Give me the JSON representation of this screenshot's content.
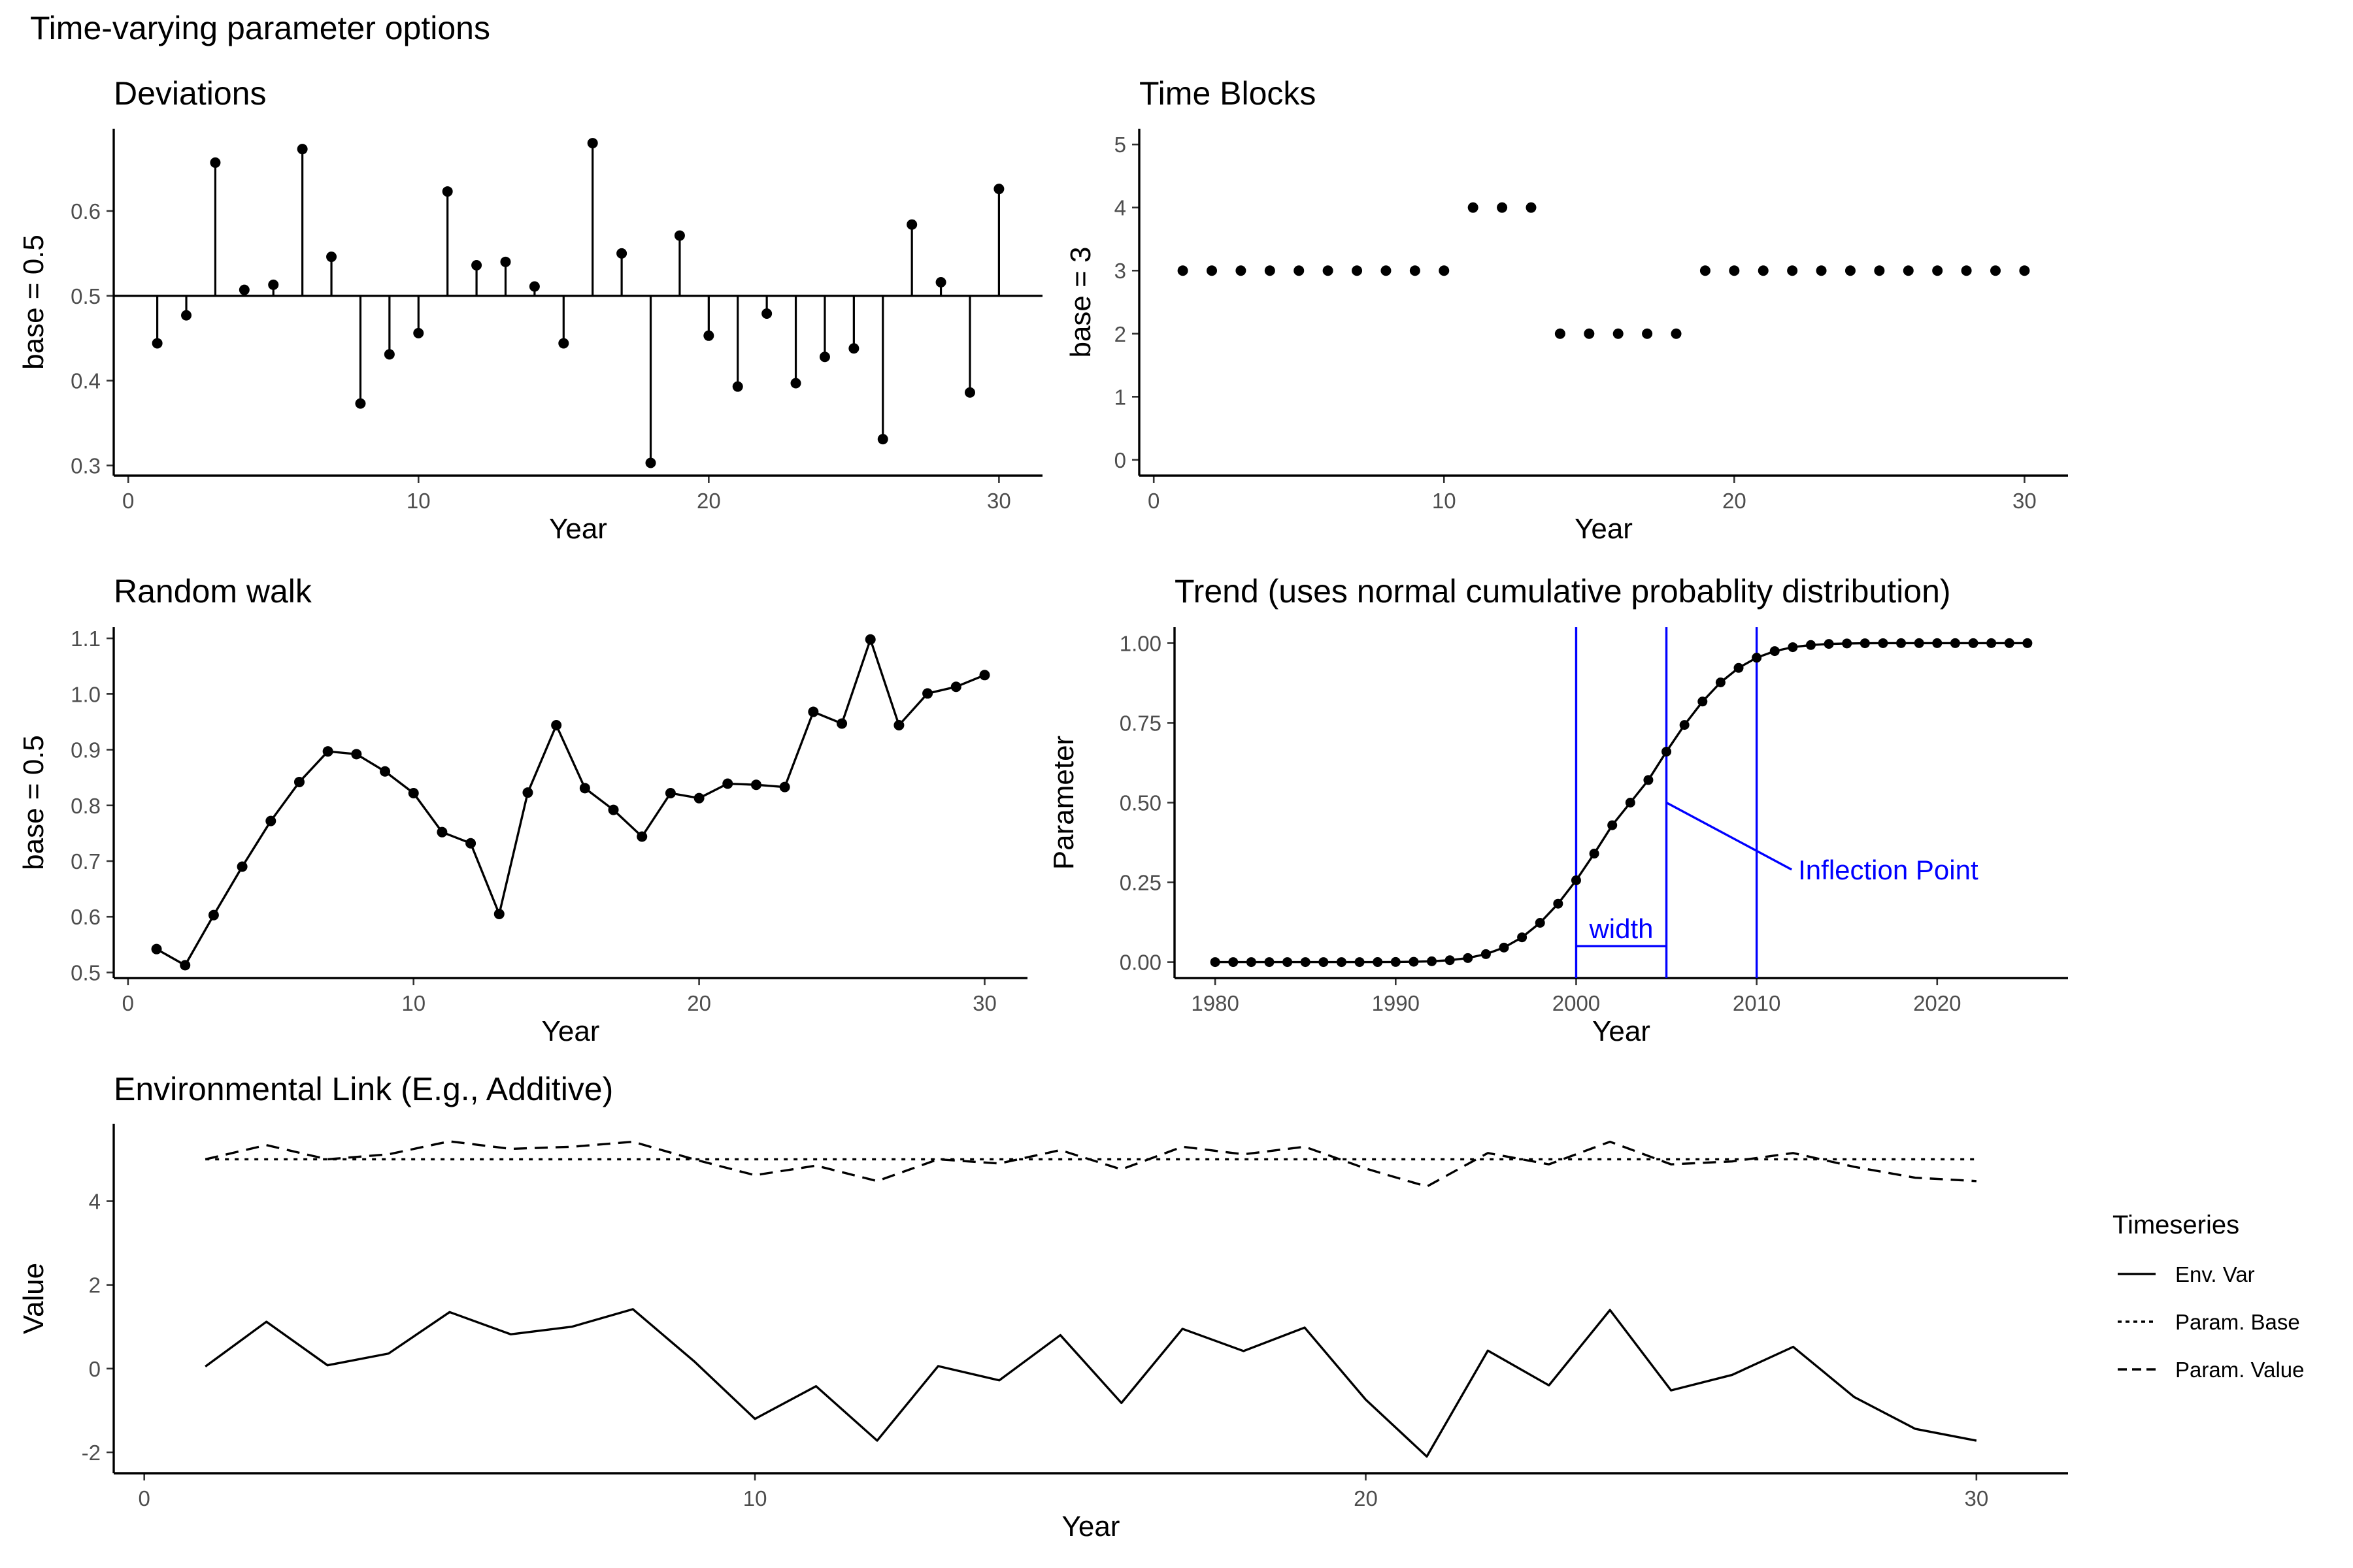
{
  "figure": {
    "title": "Time-varying parameter options",
    "legend_title": "Timeseries"
  },
  "chart_data": [
    {
      "id": "deviations",
      "type": "scatter",
      "style": "lollipop",
      "title": "Deviations",
      "xlabel": "Year",
      "ylabel": "base = 0.5",
      "baseline": 0.5,
      "xlim": [
        -0.5,
        31.5
      ],
      "ylim": [
        0.288,
        0.697
      ],
      "xticks": [
        0,
        10,
        20,
        30
      ],
      "yticks": [
        0.3,
        0.4,
        0.5,
        0.6
      ],
      "x": [
        1,
        2,
        3,
        4,
        5,
        6,
        7,
        8,
        9,
        10,
        11,
        12,
        13,
        14,
        15,
        16,
        17,
        18,
        19,
        20,
        21,
        22,
        23,
        24,
        25,
        26,
        27,
        28,
        29,
        30
      ],
      "y": [
        0.444,
        0.477,
        0.657,
        0.507,
        0.513,
        0.673,
        0.546,
        0.373,
        0.431,
        0.456,
        0.623,
        0.536,
        0.54,
        0.511,
        0.444,
        0.68,
        0.55,
        0.303,
        0.571,
        0.453,
        0.393,
        0.479,
        0.397,
        0.428,
        0.438,
        0.331,
        0.584,
        0.516,
        0.386,
        0.626
      ]
    },
    {
      "id": "timeblocks",
      "type": "scatter",
      "title": "Time Blocks",
      "xlabel": "Year",
      "ylabel": "base = 3",
      "xlim": [
        -0.5,
        31.5
      ],
      "ylim": [
        -0.25,
        5.25
      ],
      "xticks": [
        0,
        10,
        20,
        30
      ],
      "yticks": [
        0,
        1,
        2,
        3,
        4,
        5
      ],
      "x": [
        1,
        2,
        3,
        4,
        5,
        6,
        7,
        8,
        9,
        10,
        11,
        12,
        13,
        14,
        15,
        16,
        17,
        18,
        19,
        20,
        21,
        22,
        23,
        24,
        25,
        26,
        27,
        28,
        29,
        30
      ],
      "y": [
        3,
        3,
        3,
        3,
        3,
        3,
        3,
        3,
        3,
        3,
        4,
        4,
        4,
        2,
        2,
        2,
        2,
        2,
        3,
        3,
        3,
        3,
        3,
        3,
        3,
        3,
        3,
        3,
        3,
        3
      ]
    },
    {
      "id": "randomwalk",
      "type": "line",
      "title": "Random walk",
      "xlabel": "Year",
      "ylabel": "base = 0.5",
      "xlim": [
        -0.5,
        31.5
      ],
      "ylim": [
        0.49,
        1.12
      ],
      "xticks": [
        0,
        10,
        20,
        30
      ],
      "yticks": [
        0.5,
        0.6,
        0.7,
        0.8,
        0.9,
        1.0,
        1.1
      ],
      "ytick_labels": [
        "0.5",
        "0.6",
        "0.7",
        "0.8",
        "0.9",
        "1.0",
        "1.1"
      ],
      "x": [
        1,
        2,
        3,
        4,
        5,
        6,
        7,
        8,
        9,
        10,
        11,
        12,
        13,
        14,
        15,
        16,
        17,
        18,
        19,
        20,
        21,
        22,
        23,
        24,
        25,
        26,
        27,
        28,
        29,
        30
      ],
      "y": [
        0.542,
        0.513,
        0.603,
        0.69,
        0.772,
        0.842,
        0.897,
        0.892,
        0.861,
        0.822,
        0.752,
        0.732,
        0.605,
        0.823,
        0.944,
        0.831,
        0.792,
        0.744,
        0.822,
        0.813,
        0.839,
        0.837,
        0.833,
        0.968,
        0.947,
        1.098,
        0.944,
        1.001,
        1.013,
        1.034
      ]
    },
    {
      "id": "trend",
      "type": "line",
      "title": "Trend (uses normal cumulative probablity distribution)",
      "xlabel": "Year",
      "ylabel": "Parameter",
      "xlim": [
        1977.75,
        2027.25
      ],
      "ylim": [
        -0.05,
        1.05
      ],
      "xticks": [
        1980,
        1990,
        2000,
        2010,
        2020
      ],
      "yticks": [
        0,
        0.25,
        0.5,
        0.75,
        1.0
      ],
      "ytick_labels": [
        "0.00",
        "0.25",
        "0.50",
        "0.75",
        "1.00"
      ],
      "x": [
        1980,
        1981,
        1982,
        1983,
        1984,
        1985,
        1986,
        1987,
        1988,
        1989,
        1990,
        1991,
        1992,
        1993,
        1994,
        1995,
        1996,
        1997,
        1998,
        1999,
        2000,
        2001,
        2002,
        2003,
        2004,
        2005,
        2006,
        2007,
        2008,
        2009,
        2010,
        2011,
        2012,
        2013,
        2014,
        2015,
        2016,
        2017,
        2018,
        2019,
        2020,
        2021,
        2022,
        2023,
        2024,
        2025
      ],
      "y": [
        0.0,
        0.0,
        0.0,
        0.0,
        0.0,
        0.0,
        0.0,
        0.0,
        0.0,
        0.0001,
        0.0004,
        0.001,
        0.0025,
        0.0059,
        0.0127,
        0.025,
        0.0456,
        0.0776,
        0.1231,
        0.1831,
        0.2565,
        0.3401,
        0.4292,
        0.5,
        0.5708,
        0.6599,
        0.7435,
        0.8169,
        0.8769,
        0.9224,
        0.9544,
        0.975,
        0.9873,
        0.9941,
        0.9975,
        0.999,
        0.9996,
        0.9999,
        1.0,
        1.0,
        1.0,
        1.0,
        1.0,
        1.0,
        1.0,
        1.0
      ],
      "reference_lines": {
        "color": "#0000ff",
        "x": [
          2000,
          2005,
          2010
        ]
      },
      "annotations": {
        "width_label": "width",
        "width_from": 2000,
        "width_to": 2005,
        "width_y": 0.05,
        "inflection_label": "Inflection Point",
        "inflection_x": 2005,
        "inflection_y": 0.5,
        "label_x": 2012.3,
        "label_y": 0.29
      }
    },
    {
      "id": "envlink",
      "type": "line",
      "title": "Environmental Link (E.g., Additive)",
      "xlabel": "Year",
      "ylabel": "Value",
      "xlim": [
        -0.5,
        31.5
      ],
      "ylim": [
        -2.5,
        5.85
      ],
      "xticks": [
        0,
        10,
        20,
        30
      ],
      "yticks": [
        -2,
        0,
        2,
        4
      ],
      "x": [
        1,
        2,
        3,
        4,
        5,
        6,
        7,
        8,
        9,
        10,
        11,
        12,
        13,
        14,
        15,
        16,
        17,
        18,
        19,
        20,
        21,
        22,
        23,
        24,
        25,
        26,
        27,
        28,
        29,
        30
      ],
      "series": [
        {
          "name": "Env. Var",
          "dash": "solid",
          "values": [
            0.05,
            1.12,
            0.08,
            0.36,
            1.35,
            0.82,
            1.0,
            1.42,
            0.18,
            -1.2,
            -0.42,
            -1.72,
            0.06,
            -0.28,
            0.8,
            -0.82,
            0.95,
            0.42,
            0.98,
            -0.74,
            -2.1,
            0.43,
            -0.4,
            1.4,
            -0.52,
            -0.15,
            0.52,
            -0.68,
            -1.44,
            -1.72
          ]
        },
        {
          "name": "Param. Base",
          "dash": "dotted",
          "values": [
            5,
            5,
            5,
            5,
            5,
            5,
            5,
            5,
            5,
            5,
            5,
            5,
            5,
            5,
            5,
            5,
            5,
            5,
            5,
            5,
            5,
            5,
            5,
            5,
            5,
            5,
            5,
            5,
            5,
            5
          ]
        },
        {
          "name": "Param. Value",
          "dash": "dashed",
          "values": [
            5.0,
            5.34,
            5.0,
            5.12,
            5.43,
            5.25,
            5.3,
            5.42,
            5.0,
            4.62,
            4.85,
            4.48,
            5.0,
            4.9,
            5.22,
            4.76,
            5.3,
            5.12,
            5.3,
            4.78,
            4.35,
            5.15,
            4.88,
            5.42,
            4.88,
            4.95,
            5.15,
            4.82,
            4.56,
            4.48
          ]
        }
      ]
    }
  ]
}
